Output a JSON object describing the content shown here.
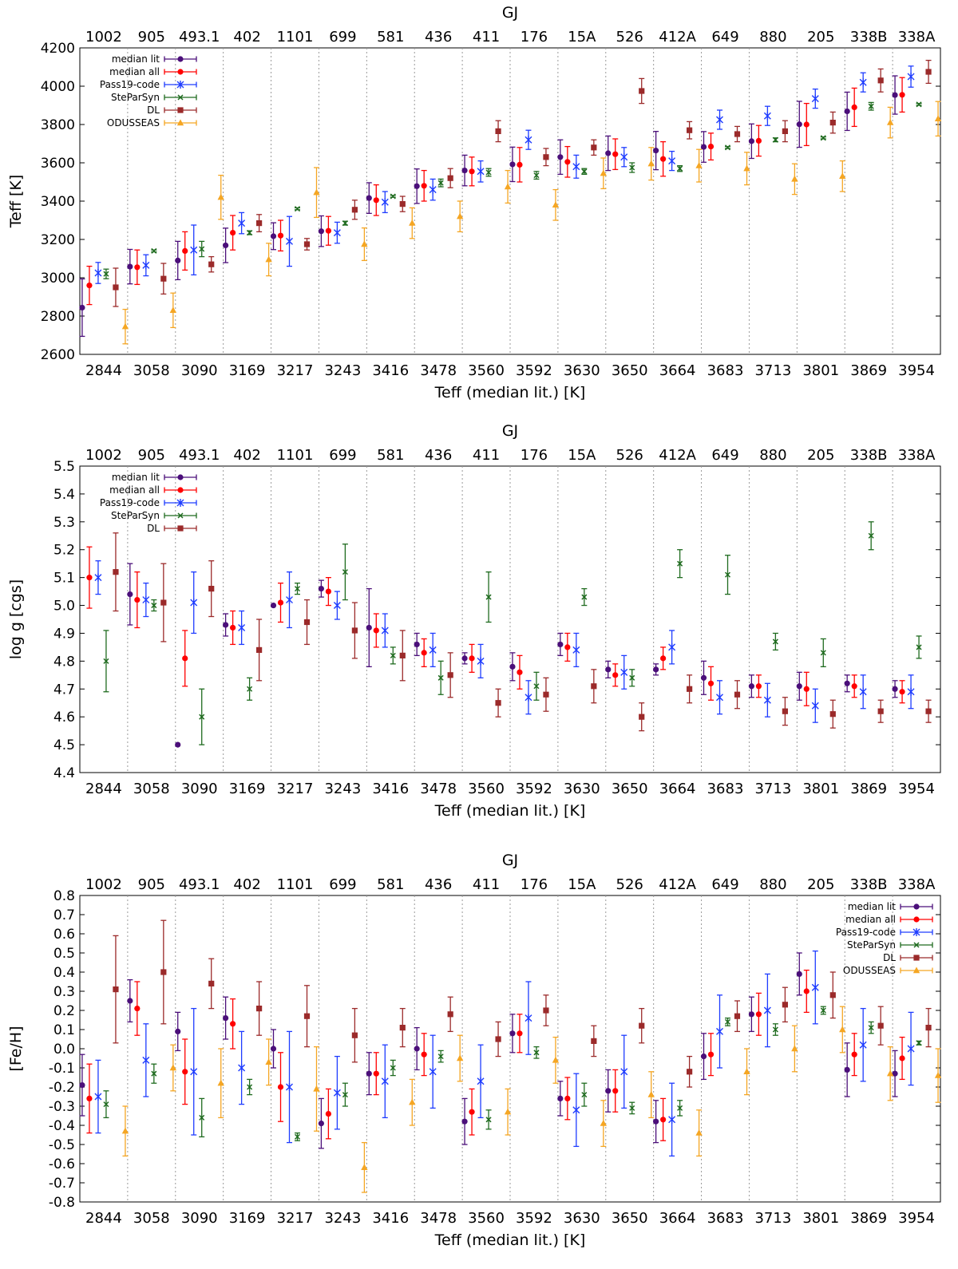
{
  "stars_gj": [
    "1002",
    "905",
    "493.1",
    "402",
    "1101",
    "699",
    "581",
    "436",
    "411",
    "176",
    "15A",
    "526",
    "412A",
    "649",
    "880",
    "205",
    "338B",
    "338A"
  ],
  "teff_median_lit": [
    "2844",
    "3058",
    "3090",
    "3169",
    "3217",
    "3243",
    "3416",
    "3478",
    "3560",
    "3592",
    "3630",
    "3650",
    "3664",
    "3683",
    "3713",
    "3801",
    "3869",
    "3954"
  ],
  "series_colors": {
    "median lit": "#4b0f7a",
    "median all": "#ff0000",
    "Pass19-code": "#1e3cff",
    "SteParSyn": "#1f6b1f",
    "DL": "#9b2a2a",
    "ODUSSEAS": "#f5a623"
  },
  "series_markers": {
    "median lit": "circle",
    "median all": "circle",
    "Pass19-code": "asterisk",
    "SteParSyn": "x",
    "DL": "square",
    "ODUSSEAS": "triangle"
  },
  "chart_data": [
    {
      "type": "scatter",
      "title": "",
      "top_axis_label": "GJ",
      "xlabel": "Teff (median lit.) [K]",
      "ylabel": "Teff [K]",
      "ylim": [
        2600,
        4200
      ],
      "ytick_step": 200,
      "ytick_decimals": 0,
      "legend_location": "top-left",
      "legend": [
        "median lit",
        "median all",
        "Pass19-code",
        "SteParSyn",
        "DL",
        "ODUSSEAS"
      ],
      "series": [
        {
          "name": "median lit",
          "values": [
            2844,
            3058,
            3090,
            3169,
            3217,
            3243,
            3416,
            3478,
            3560,
            3592,
            3630,
            3650,
            3664,
            3683,
            3713,
            3801,
            3869,
            3954
          ],
          "errors": [
            150,
            90,
            100,
            90,
            70,
            80,
            80,
            90,
            80,
            90,
            90,
            90,
            100,
            80,
            90,
            120,
            100,
            100
          ]
        },
        {
          "name": "median all",
          "values": [
            2960,
            3055,
            3140,
            3235,
            3220,
            3245,
            3405,
            3480,
            3555,
            3590,
            3605,
            3645,
            3620,
            3685,
            3715,
            3800,
            3890,
            3955
          ],
          "errors": [
            100,
            90,
            100,
            90,
            80,
            75,
            80,
            80,
            75,
            90,
            80,
            80,
            90,
            70,
            80,
            110,
            100,
            90
          ]
        },
        {
          "name": "Pass19-code",
          "values": [
            3025,
            3065,
            3145,
            3285,
            3190,
            3235,
            3395,
            3460,
            3555,
            3720,
            3580,
            3630,
            3610,
            3825,
            3845,
            3935,
            4020,
            4050
          ],
          "errors": [
            55,
            55,
            130,
            55,
            130,
            55,
            55,
            55,
            55,
            50,
            60,
            50,
            50,
            50,
            50,
            50,
            50,
            55
          ]
        },
        {
          "name": "SteParSyn",
          "values": [
            3020,
            3140,
            3150,
            3235,
            3360,
            3285,
            3425,
            3495,
            3550,
            3535,
            3555,
            3575,
            3570,
            3680,
            3720,
            3730,
            3895,
            3905
          ],
          "errors": [
            25,
            5,
            40,
            10,
            5,
            10,
            5,
            20,
            20,
            20,
            15,
            25,
            15,
            5,
            10,
            5,
            20,
            5
          ]
        },
        {
          "name": "DL",
          "values": [
            2950,
            2995,
            3070,
            3285,
            3175,
            3355,
            3385,
            3520,
            3765,
            3630,
            3680,
            3975,
            3770,
            3750,
            3765,
            3810,
            4030,
            4075
          ],
          "errors": [
            100,
            80,
            40,
            45,
            30,
            50,
            40,
            50,
            55,
            45,
            40,
            65,
            45,
            40,
            55,
            55,
            60,
            60
          ]
        },
        {
          "name": "ODUSSEAS",
          "values": [
            2745,
            2830,
            3420,
            3095,
            3445,
            3175,
            3285,
            3320,
            3475,
            3380,
            3545,
            3595,
            3585,
            3570,
            3515,
            3530,
            3810,
            3830
          ],
          "errors": [
            90,
            90,
            115,
            85,
            130,
            85,
            80,
            80,
            85,
            80,
            80,
            85,
            85,
            85,
            80,
            80,
            80,
            90
          ]
        }
      ]
    },
    {
      "type": "scatter",
      "title": "",
      "top_axis_label": "GJ",
      "xlabel": "Teff (median lit.) [K]",
      "ylabel": "log g [cgs]",
      "ylim": [
        4.4,
        5.5
      ],
      "ytick_step": 0.1,
      "ytick_decimals": 1,
      "legend_location": "top-left",
      "legend": [
        "median lit",
        "median all",
        "Pass19-code",
        "SteParSyn",
        "DL"
      ],
      "series": [
        {
          "name": "median lit",
          "values": [
            null,
            5.04,
            4.5,
            4.93,
            5.0,
            5.06,
            4.92,
            4.86,
            4.81,
            4.78,
            4.86,
            4.77,
            4.77,
            4.74,
            4.71,
            4.71,
            4.72,
            4.7
          ],
          "errors": [
            0,
            0.11,
            0,
            0.04,
            0,
            0.03,
            0.14,
            0.04,
            0.02,
            0.05,
            0.04,
            0.03,
            0.02,
            0.06,
            0.04,
            0.05,
            0.03,
            0.03
          ]
        },
        {
          "name": "median all",
          "values": [
            5.1,
            5.02,
            4.81,
            4.92,
            5.01,
            5.05,
            4.91,
            4.83,
            4.81,
            4.76,
            4.85,
            4.75,
            4.81,
            4.72,
            4.71,
            4.7,
            4.71,
            4.69
          ],
          "errors": [
            0.11,
            0.1,
            0.1,
            0.06,
            0.07,
            0.05,
            0.06,
            0.05,
            0.05,
            0.06,
            0.05,
            0.04,
            0.04,
            0.06,
            0.04,
            0.06,
            0.04,
            0.04
          ]
        },
        {
          "name": "Pass19-code",
          "values": [
            5.1,
            5.02,
            5.01,
            4.92,
            5.02,
            5.0,
            4.91,
            4.84,
            4.8,
            4.67,
            4.84,
            4.76,
            4.85,
            4.67,
            4.66,
            4.64,
            4.69,
            4.69
          ],
          "errors": [
            0.06,
            0.06,
            0.11,
            0.06,
            0.1,
            0.05,
            0.06,
            0.06,
            0.06,
            0.06,
            0.06,
            0.06,
            0.06,
            0.06,
            0.06,
            0.06,
            0.06,
            0.06
          ]
        },
        {
          "name": "SteParSyn",
          "values": [
            4.8,
            5.0,
            4.6,
            4.7,
            5.06,
            5.12,
            4.82,
            4.74,
            5.03,
            4.71,
            5.03,
            4.74,
            5.15,
            5.11,
            4.87,
            4.83,
            5.25,
            4.85
          ],
          "errors": [
            0.11,
            0.02,
            0.1,
            0.04,
            0.02,
            0.1,
            0.03,
            0.06,
            0.09,
            0.05,
            0.03,
            0.03,
            0.05,
            0.07,
            0.03,
            0.05,
            0.05,
            0.04
          ]
        },
        {
          "name": "DL",
          "values": [
            5.12,
            5.01,
            5.06,
            4.84,
            4.94,
            4.91,
            4.82,
            4.75,
            4.65,
            4.68,
            4.71,
            4.6,
            4.7,
            4.68,
            4.62,
            4.61,
            4.62,
            4.62
          ],
          "errors": [
            0.14,
            0.14,
            0.1,
            0.11,
            0.08,
            0.1,
            0.09,
            0.08,
            0.05,
            0.06,
            0.06,
            0.05,
            0.05,
            0.05,
            0.05,
            0.05,
            0.04,
            0.04
          ]
        }
      ]
    },
    {
      "type": "scatter",
      "title": "",
      "top_axis_label": "GJ",
      "xlabel": "Teff (median lit.) [K]",
      "ylabel": "[Fe/H]",
      "ylim": [
        -0.8,
        0.8
      ],
      "ytick_step": 0.1,
      "ytick_decimals": 1,
      "legend_location": "top-right",
      "legend": [
        "median lit",
        "median all",
        "Pass19-code",
        "SteParSyn",
        "DL",
        "ODUSSEAS"
      ],
      "series": [
        {
          "name": "median lit",
          "values": [
            -0.19,
            0.25,
            0.09,
            0.16,
            0.0,
            -0.39,
            -0.13,
            0.0,
            -0.38,
            0.08,
            -0.26,
            -0.22,
            -0.38,
            -0.04,
            0.18,
            0.39,
            -0.11,
            -0.13
          ],
          "errors": [
            0.16,
            0.11,
            0.1,
            0.11,
            0.1,
            0.13,
            0.11,
            0.11,
            0.12,
            0.1,
            0.09,
            0.11,
            0.11,
            0.12,
            0.09,
            0.11,
            0.14,
            0.12
          ]
        },
        {
          "name": "median all",
          "values": [
            -0.26,
            0.21,
            -0.12,
            0.13,
            -0.2,
            -0.34,
            -0.13,
            -0.03,
            -0.33,
            0.08,
            -0.26,
            -0.22,
            -0.37,
            -0.03,
            0.18,
            0.3,
            -0.03,
            -0.05
          ],
          "errors": [
            0.18,
            0.14,
            0.17,
            0.13,
            0.18,
            0.13,
            0.11,
            0.11,
            0.12,
            0.1,
            0.11,
            0.11,
            0.11,
            0.11,
            0.11,
            0.11,
            0.11,
            0.11
          ]
        },
        {
          "name": "Pass19-code",
          "values": [
            -0.25,
            -0.06,
            -0.12,
            -0.1,
            -0.2,
            -0.23,
            -0.17,
            -0.12,
            -0.17,
            0.16,
            -0.32,
            -0.12,
            -0.37,
            0.09,
            0.2,
            0.32,
            0.02,
            0.0
          ],
          "errors": [
            0.19,
            0.19,
            0.33,
            0.19,
            0.29,
            0.19,
            0.19,
            0.19,
            0.19,
            0.19,
            0.19,
            0.19,
            0.19,
            0.19,
            0.19,
            0.19,
            0.19,
            0.19
          ]
        },
        {
          "name": "SteParSyn",
          "values": [
            -0.29,
            -0.13,
            -0.36,
            -0.2,
            -0.46,
            -0.24,
            -0.1,
            -0.04,
            -0.37,
            -0.02,
            -0.24,
            -0.31,
            -0.31,
            0.14,
            0.1,
            0.2,
            0.11,
            0.03
          ],
          "errors": [
            0.07,
            0.05,
            0.1,
            0.04,
            0.02,
            0.06,
            0.04,
            0.03,
            0.05,
            0.03,
            0.06,
            0.03,
            0.04,
            0.02,
            0.03,
            0.02,
            0.03,
            0.01
          ]
        },
        {
          "name": "DL",
          "values": [
            0.31,
            0.4,
            0.34,
            0.21,
            0.17,
            0.07,
            0.11,
            0.18,
            0.05,
            0.2,
            0.04,
            0.12,
            -0.12,
            0.17,
            0.23,
            0.28,
            0.12,
            0.11
          ],
          "errors": [
            0.28,
            0.27,
            0.13,
            0.14,
            0.16,
            0.14,
            0.1,
            0.09,
            0.09,
            0.08,
            0.08,
            0.09,
            0.08,
            0.08,
            0.09,
            0.12,
            0.1,
            0.1
          ]
        },
        {
          "name": "ODUSSEAS",
          "values": [
            -0.43,
            -0.1,
            -0.18,
            -0.07,
            -0.21,
            -0.62,
            -0.28,
            -0.05,
            -0.33,
            -0.06,
            -0.39,
            -0.24,
            -0.44,
            -0.12,
            0.0,
            0.1,
            -0.13,
            -0.14
          ],
          "errors": [
            0.13,
            0.12,
            0.18,
            0.12,
            0.22,
            0.13,
            0.12,
            0.12,
            0.12,
            0.12,
            0.12,
            0.12,
            0.12,
            0.12,
            0.12,
            0.12,
            0.14,
            0.14
          ]
        }
      ]
    }
  ]
}
